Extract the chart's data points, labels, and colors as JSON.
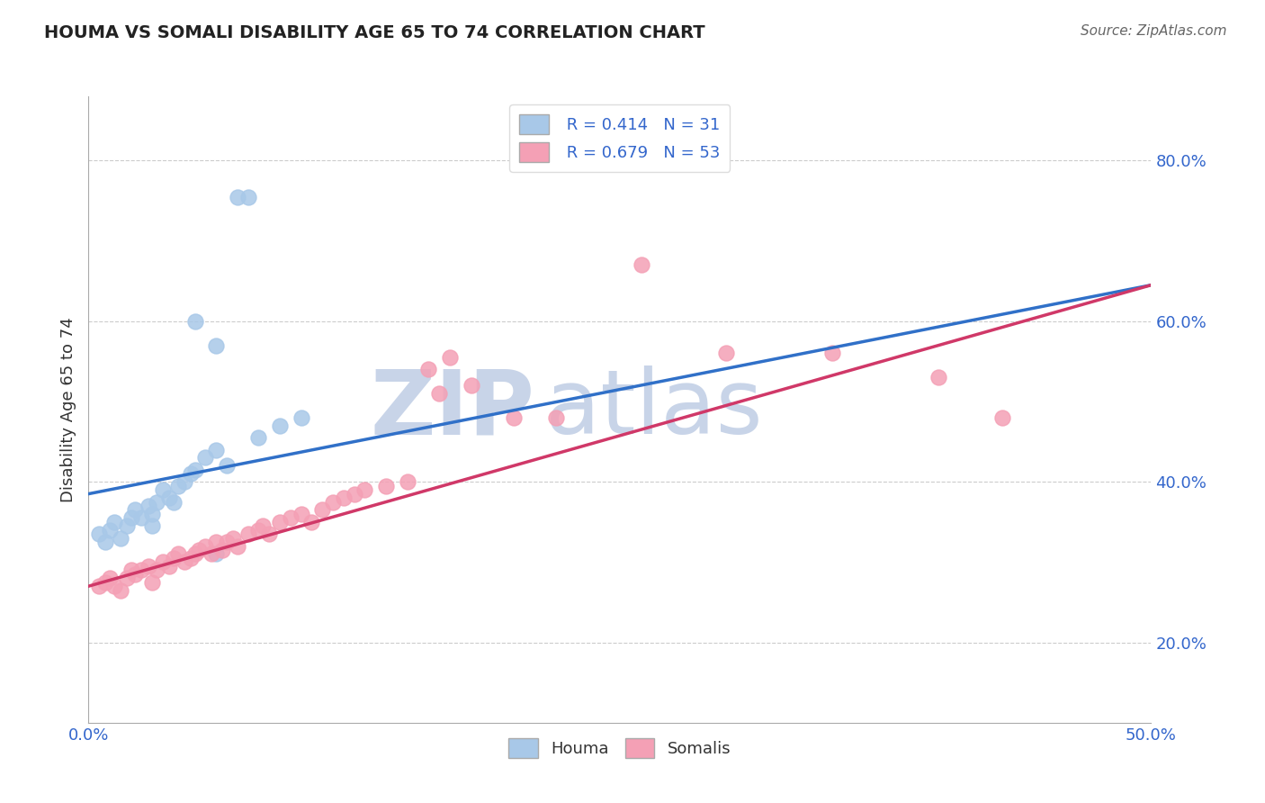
{
  "title": "HOUMA VS SOMALI DISABILITY AGE 65 TO 74 CORRELATION CHART",
  "source_text": "Source: ZipAtlas.com",
  "ylabel": "Disability Age 65 to 74",
  "xlim": [
    0.0,
    0.5
  ],
  "ylim": [
    0.1,
    0.88
  ],
  "xticks": [
    0.0,
    0.5
  ],
  "xtick_labels": [
    "0.0%",
    "50.0%"
  ],
  "ytick_labels": [
    "20.0%",
    "40.0%",
    "60.0%",
    "80.0%"
  ],
  "ytick_values": [
    0.2,
    0.4,
    0.6,
    0.8
  ],
  "houma_R": 0.414,
  "houma_N": 31,
  "somali_R": 0.679,
  "somali_N": 53,
  "houma_color": "#a8c8e8",
  "somali_color": "#f4a0b5",
  "houma_line_color": "#3070c8",
  "somali_line_color": "#d03868",
  "houma_line_x0": 0.0,
  "houma_line_y0": 0.385,
  "houma_line_x1": 0.5,
  "houma_line_y1": 0.645,
  "somali_line_x0": 0.0,
  "somali_line_y0": 0.27,
  "somali_line_x1": 0.5,
  "somali_line_y1": 0.645,
  "legend_label_houma": "Houma",
  "legend_label_somali": "Somalis",
  "watermark_zip": "ZIP",
  "watermark_atlas": "atlas",
  "watermark_color": "#c8d4e8",
  "background_color": "#ffffff",
  "grid_color": "#cccccc",
  "houma_x": [
    0.005,
    0.008,
    0.01,
    0.012,
    0.015,
    0.018,
    0.02,
    0.022,
    0.025,
    0.028,
    0.03,
    0.03,
    0.032,
    0.035,
    0.038,
    0.04,
    0.042,
    0.045,
    0.048,
    0.05,
    0.055,
    0.06,
    0.065,
    0.07,
    0.075,
    0.08,
    0.09,
    0.1,
    0.05,
    0.06,
    0.06
  ],
  "houma_y": [
    0.335,
    0.325,
    0.34,
    0.35,
    0.33,
    0.345,
    0.355,
    0.365,
    0.355,
    0.37,
    0.36,
    0.345,
    0.375,
    0.39,
    0.38,
    0.375,
    0.395,
    0.4,
    0.41,
    0.415,
    0.43,
    0.44,
    0.42,
    0.755,
    0.755,
    0.455,
    0.47,
    0.48,
    0.6,
    0.57,
    0.31
  ],
  "somali_x": [
    0.005,
    0.008,
    0.01,
    0.012,
    0.015,
    0.018,
    0.02,
    0.022,
    0.025,
    0.028,
    0.03,
    0.032,
    0.035,
    0.038,
    0.04,
    0.042,
    0.045,
    0.048,
    0.05,
    0.052,
    0.055,
    0.058,
    0.06,
    0.063,
    0.065,
    0.068,
    0.07,
    0.075,
    0.08,
    0.082,
    0.085,
    0.09,
    0.095,
    0.1,
    0.105,
    0.11,
    0.115,
    0.12,
    0.125,
    0.13,
    0.14,
    0.15,
    0.16,
    0.165,
    0.17,
    0.18,
    0.2,
    0.22,
    0.26,
    0.3,
    0.35,
    0.4,
    0.43
  ],
  "somali_y": [
    0.27,
    0.275,
    0.28,
    0.27,
    0.265,
    0.28,
    0.29,
    0.285,
    0.29,
    0.295,
    0.275,
    0.29,
    0.3,
    0.295,
    0.305,
    0.31,
    0.3,
    0.305,
    0.31,
    0.315,
    0.32,
    0.31,
    0.325,
    0.315,
    0.325,
    0.33,
    0.32,
    0.335,
    0.34,
    0.345,
    0.335,
    0.35,
    0.355,
    0.36,
    0.35,
    0.365,
    0.375,
    0.38,
    0.385,
    0.39,
    0.395,
    0.4,
    0.54,
    0.51,
    0.555,
    0.52,
    0.48,
    0.48,
    0.67,
    0.56,
    0.56,
    0.53,
    0.48
  ]
}
